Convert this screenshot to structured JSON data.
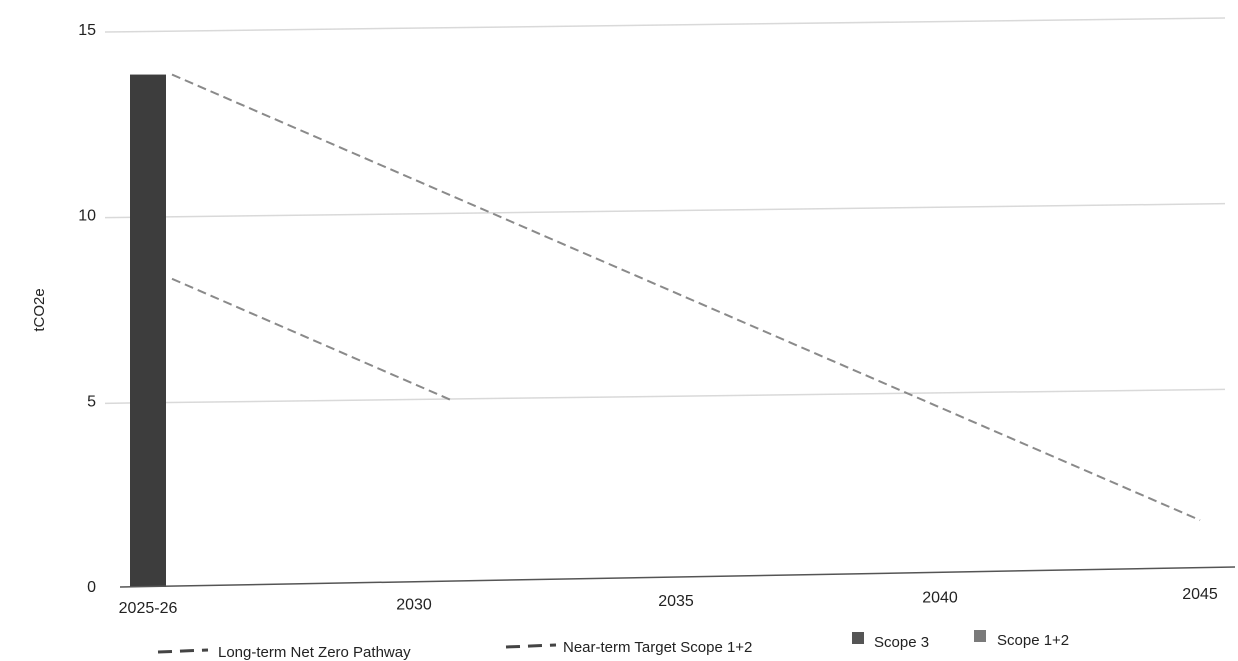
{
  "chart_data": {
    "type": "bar",
    "title": "",
    "xlabel": "",
    "ylabel": "tCO2e",
    "ylim": [
      0,
      15
    ],
    "yticks": [
      "0",
      "5",
      "10",
      "15"
    ],
    "x_axis": {
      "ticks": [
        "2025-26",
        "2030",
        "2035",
        "2040",
        "2045"
      ],
      "tick_years": [
        2025,
        2030,
        2035,
        2040,
        2045
      ],
      "range": [
        2025,
        2045
      ]
    },
    "grid": true,
    "legend": {
      "position": "bottom",
      "items": [
        {
          "label": "Long-term Net Zero Pathway",
          "kind": "dashed-line",
          "color": "#8a8a8a"
        },
        {
          "label": "Near-term Target Scope 1+2",
          "kind": "dashed-line",
          "color": "#8a8a8a"
        },
        {
          "label": "Scope 3",
          "kind": "square",
          "color": "#555555"
        },
        {
          "label": "Scope 1+2",
          "kind": "square",
          "color": "#7a7a7a"
        }
      ]
    },
    "bars": [
      {
        "category": "2025-26",
        "year": 2025,
        "scope12": 13.8,
        "scope3": 0
      }
    ],
    "series": [
      {
        "name": "Long-term Net Zero Pathway",
        "style": "dashed",
        "x": [
          2025,
          2045
        ],
        "y": [
          13.8,
          1.8
        ]
      },
      {
        "name": "Near-term Target Scope 1+2",
        "style": "dashed",
        "x": [
          2025,
          2030
        ],
        "y": [
          8.3,
          5.0
        ]
      }
    ]
  }
}
